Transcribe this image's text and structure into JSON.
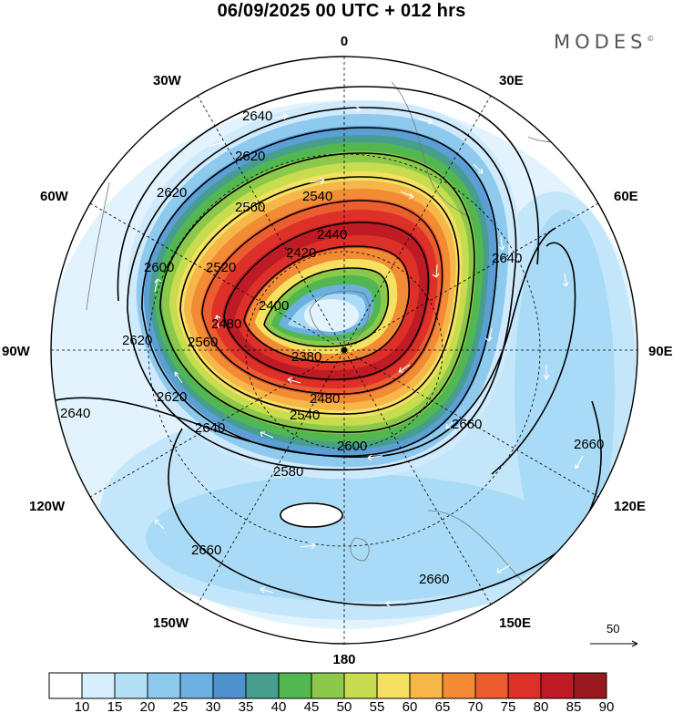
{
  "header": {
    "title": "06/09/2025  00 UTC  + 012 hrs",
    "brand": "MODES",
    "brand_mark": "©"
  },
  "map": {
    "projection": "south polar stereographic",
    "longitude_labels": [
      "0",
      "30E",
      "60E",
      "90E",
      "120E",
      "150E",
      "180",
      "150W",
      "120W",
      "90W",
      "60W",
      "30W"
    ],
    "contour_labels": [
      "2640",
      "2620",
      "2620",
      "2600",
      "2620",
      "2560",
      "2540",
      "2440",
      "2420",
      "2380",
      "2520",
      "2480",
      "2400",
      "2560",
      "2620",
      "2640",
      "2640",
      "2600",
      "2580",
      "2660",
      "2660",
      "2660",
      "2660",
      "2640",
      "2480",
      "2540"
    ],
    "vector_reference": "50"
  },
  "legend": {
    "colors": [
      "#ffffff",
      "#d6efff",
      "#b4e0f7",
      "#8ec9ee",
      "#6cb0e0",
      "#4f91cd",
      "#479e8f",
      "#52b751",
      "#8cc94a",
      "#c7dc4f",
      "#f5e060",
      "#f6b64a",
      "#f28c34",
      "#eb5d2f",
      "#dc3028",
      "#bf1b24",
      "#981a1e"
    ],
    "ticks": [
      "10",
      "15",
      "20",
      "25",
      "30",
      "35",
      "40",
      "45",
      "50",
      "55",
      "60",
      "65",
      "70",
      "75",
      "80",
      "85",
      "90"
    ]
  }
}
